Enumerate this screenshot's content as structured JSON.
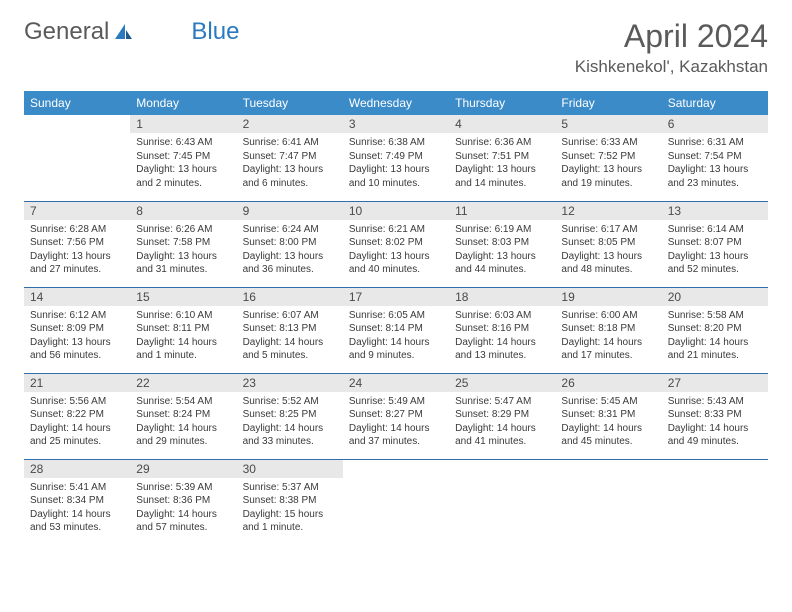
{
  "brand": {
    "part1": "General",
    "part2": "Blue"
  },
  "title": "April 2024",
  "location": "Kishkenekol', Kazakhstan",
  "colors": {
    "header_bg": "#3b8bc8",
    "header_text": "#ffffff",
    "row_border": "#2f6fa8",
    "daynum_bg": "#e8e8e8",
    "text": "#3a3a3a",
    "brand_gray": "#5a5a5a",
    "brand_blue": "#2b7ac0"
  },
  "weekdays": [
    "Sunday",
    "Monday",
    "Tuesday",
    "Wednesday",
    "Thursday",
    "Friday",
    "Saturday"
  ],
  "days": {
    "1": {
      "sunrise": "Sunrise: 6:43 AM",
      "sunset": "Sunset: 7:45 PM",
      "day1": "Daylight: 13 hours",
      "day2": "and 2 minutes."
    },
    "2": {
      "sunrise": "Sunrise: 6:41 AM",
      "sunset": "Sunset: 7:47 PM",
      "day1": "Daylight: 13 hours",
      "day2": "and 6 minutes."
    },
    "3": {
      "sunrise": "Sunrise: 6:38 AM",
      "sunset": "Sunset: 7:49 PM",
      "day1": "Daylight: 13 hours",
      "day2": "and 10 minutes."
    },
    "4": {
      "sunrise": "Sunrise: 6:36 AM",
      "sunset": "Sunset: 7:51 PM",
      "day1": "Daylight: 13 hours",
      "day2": "and 14 minutes."
    },
    "5": {
      "sunrise": "Sunrise: 6:33 AM",
      "sunset": "Sunset: 7:52 PM",
      "day1": "Daylight: 13 hours",
      "day2": "and 19 minutes."
    },
    "6": {
      "sunrise": "Sunrise: 6:31 AM",
      "sunset": "Sunset: 7:54 PM",
      "day1": "Daylight: 13 hours",
      "day2": "and 23 minutes."
    },
    "7": {
      "sunrise": "Sunrise: 6:28 AM",
      "sunset": "Sunset: 7:56 PM",
      "day1": "Daylight: 13 hours",
      "day2": "and 27 minutes."
    },
    "8": {
      "sunrise": "Sunrise: 6:26 AM",
      "sunset": "Sunset: 7:58 PM",
      "day1": "Daylight: 13 hours",
      "day2": "and 31 minutes."
    },
    "9": {
      "sunrise": "Sunrise: 6:24 AM",
      "sunset": "Sunset: 8:00 PM",
      "day1": "Daylight: 13 hours",
      "day2": "and 36 minutes."
    },
    "10": {
      "sunrise": "Sunrise: 6:21 AM",
      "sunset": "Sunset: 8:02 PM",
      "day1": "Daylight: 13 hours",
      "day2": "and 40 minutes."
    },
    "11": {
      "sunrise": "Sunrise: 6:19 AM",
      "sunset": "Sunset: 8:03 PM",
      "day1": "Daylight: 13 hours",
      "day2": "and 44 minutes."
    },
    "12": {
      "sunrise": "Sunrise: 6:17 AM",
      "sunset": "Sunset: 8:05 PM",
      "day1": "Daylight: 13 hours",
      "day2": "and 48 minutes."
    },
    "13": {
      "sunrise": "Sunrise: 6:14 AM",
      "sunset": "Sunset: 8:07 PM",
      "day1": "Daylight: 13 hours",
      "day2": "and 52 minutes."
    },
    "14": {
      "sunrise": "Sunrise: 6:12 AM",
      "sunset": "Sunset: 8:09 PM",
      "day1": "Daylight: 13 hours",
      "day2": "and 56 minutes."
    },
    "15": {
      "sunrise": "Sunrise: 6:10 AM",
      "sunset": "Sunset: 8:11 PM",
      "day1": "Daylight: 14 hours",
      "day2": "and 1 minute."
    },
    "16": {
      "sunrise": "Sunrise: 6:07 AM",
      "sunset": "Sunset: 8:13 PM",
      "day1": "Daylight: 14 hours",
      "day2": "and 5 minutes."
    },
    "17": {
      "sunrise": "Sunrise: 6:05 AM",
      "sunset": "Sunset: 8:14 PM",
      "day1": "Daylight: 14 hours",
      "day2": "and 9 minutes."
    },
    "18": {
      "sunrise": "Sunrise: 6:03 AM",
      "sunset": "Sunset: 8:16 PM",
      "day1": "Daylight: 14 hours",
      "day2": "and 13 minutes."
    },
    "19": {
      "sunrise": "Sunrise: 6:00 AM",
      "sunset": "Sunset: 8:18 PM",
      "day1": "Daylight: 14 hours",
      "day2": "and 17 minutes."
    },
    "20": {
      "sunrise": "Sunrise: 5:58 AM",
      "sunset": "Sunset: 8:20 PM",
      "day1": "Daylight: 14 hours",
      "day2": "and 21 minutes."
    },
    "21": {
      "sunrise": "Sunrise: 5:56 AM",
      "sunset": "Sunset: 8:22 PM",
      "day1": "Daylight: 14 hours",
      "day2": "and 25 minutes."
    },
    "22": {
      "sunrise": "Sunrise: 5:54 AM",
      "sunset": "Sunset: 8:24 PM",
      "day1": "Daylight: 14 hours",
      "day2": "and 29 minutes."
    },
    "23": {
      "sunrise": "Sunrise: 5:52 AM",
      "sunset": "Sunset: 8:25 PM",
      "day1": "Daylight: 14 hours",
      "day2": "and 33 minutes."
    },
    "24": {
      "sunrise": "Sunrise: 5:49 AM",
      "sunset": "Sunset: 8:27 PM",
      "day1": "Daylight: 14 hours",
      "day2": "and 37 minutes."
    },
    "25": {
      "sunrise": "Sunrise: 5:47 AM",
      "sunset": "Sunset: 8:29 PM",
      "day1": "Daylight: 14 hours",
      "day2": "and 41 minutes."
    },
    "26": {
      "sunrise": "Sunrise: 5:45 AM",
      "sunset": "Sunset: 8:31 PM",
      "day1": "Daylight: 14 hours",
      "day2": "and 45 minutes."
    },
    "27": {
      "sunrise": "Sunrise: 5:43 AM",
      "sunset": "Sunset: 8:33 PM",
      "day1": "Daylight: 14 hours",
      "day2": "and 49 minutes."
    },
    "28": {
      "sunrise": "Sunrise: 5:41 AM",
      "sunset": "Sunset: 8:34 PM",
      "day1": "Daylight: 14 hours",
      "day2": "and 53 minutes."
    },
    "29": {
      "sunrise": "Sunrise: 5:39 AM",
      "sunset": "Sunset: 8:36 PM",
      "day1": "Daylight: 14 hours",
      "day2": "and 57 minutes."
    },
    "30": {
      "sunrise": "Sunrise: 5:37 AM",
      "sunset": "Sunset: 8:38 PM",
      "day1": "Daylight: 15 hours",
      "day2": "and 1 minute."
    }
  },
  "grid": [
    [
      null,
      1,
      2,
      3,
      4,
      5,
      6
    ],
    [
      7,
      8,
      9,
      10,
      11,
      12,
      13
    ],
    [
      14,
      15,
      16,
      17,
      18,
      19,
      20
    ],
    [
      21,
      22,
      23,
      24,
      25,
      26,
      27
    ],
    [
      28,
      29,
      30,
      null,
      null,
      null,
      null
    ]
  ]
}
